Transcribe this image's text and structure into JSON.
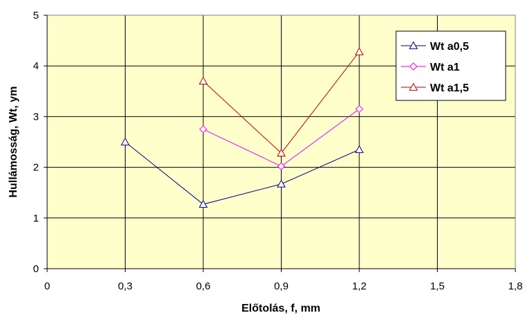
{
  "chart_data": {
    "type": "line",
    "xlabel": "Előtolás, f, mm",
    "ylabel": "Hullámosság, Wt, ym",
    "xlim": [
      0,
      1.8
    ],
    "ylim": [
      0,
      5
    ],
    "x_ticks": [
      {
        "value": 0,
        "label": "0"
      },
      {
        "value": 0.3,
        "label": "0,3"
      },
      {
        "value": 0.6,
        "label": "0,6"
      },
      {
        "value": 0.9,
        "label": "0,9"
      },
      {
        "value": 1.2,
        "label": "1,2"
      },
      {
        "value": 1.5,
        "label": "1,5"
      },
      {
        "value": 1.8,
        "label": "1,8"
      }
    ],
    "y_ticks": [
      {
        "value": 0,
        "label": "0"
      },
      {
        "value": 1,
        "label": "1"
      },
      {
        "value": 2,
        "label": "2"
      },
      {
        "value": 3,
        "label": "3"
      },
      {
        "value": 4,
        "label": "4"
      },
      {
        "value": 5,
        "label": "5"
      }
    ],
    "grid": true,
    "legend_position": "top-right",
    "plot_background": "#FFFFCC",
    "series": [
      {
        "name": "Wt a0,5",
        "color": "#000080",
        "marker": "triangle",
        "points": [
          [
            0.3,
            2.5
          ],
          [
            0.6,
            1.27
          ],
          [
            0.9,
            1.67
          ],
          [
            1.2,
            2.35
          ]
        ]
      },
      {
        "name": "Wt a1",
        "color": "#FF00FF",
        "marker": "diamond",
        "points": [
          [
            0.6,
            2.75
          ],
          [
            0.9,
            2.02
          ],
          [
            1.2,
            3.15
          ]
        ]
      },
      {
        "name": "Wt a1,5",
        "color": "#CC0000",
        "marker": "triangle",
        "points": [
          [
            0.6,
            3.7
          ],
          [
            0.9,
            2.28
          ],
          [
            1.2,
            4.28
          ]
        ]
      }
    ]
  }
}
